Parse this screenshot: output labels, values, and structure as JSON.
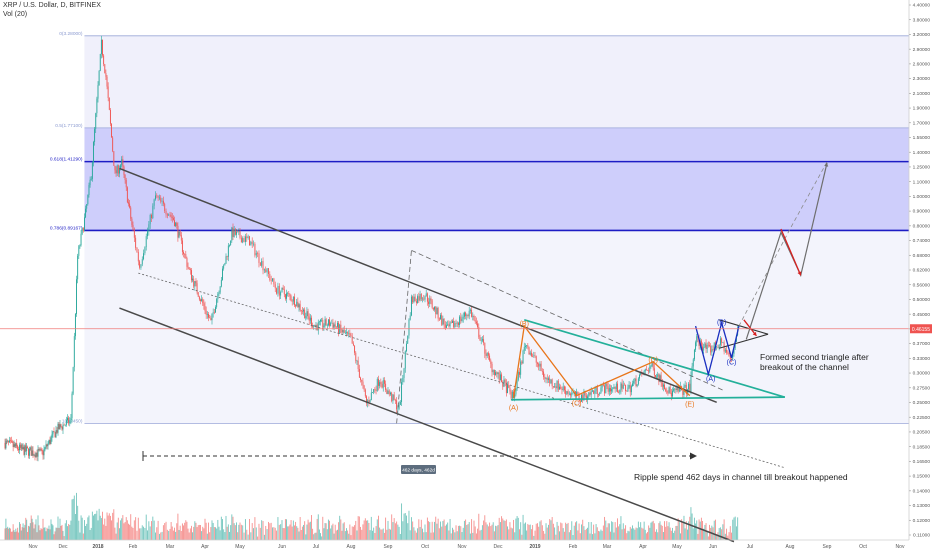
{
  "header": {
    "symbol_line": "XRP / U.S. Dollar, D, BITFINEX",
    "volume_line": "Vol (20)"
  },
  "chart_data": {
    "type": "candlestick",
    "scale": "log",
    "ylim": [
      0.11,
      5.1
    ],
    "y_ticks": [
      "4.40000",
      "3.80000",
      "3.20000",
      "2.90000",
      "2.60000",
      "2.30000",
      "2.10000",
      "1.90000",
      "1.70000",
      "1.55000",
      "1.40000",
      "1.25000",
      "1.10000",
      "1.00000",
      "0.90000",
      "0.80000",
      "0.74000",
      "0.68000",
      "0.62000",
      "0.56000",
      "0.50000",
      "0.45000",
      "0.40600",
      "0.37000",
      "0.33000",
      "0.30000",
      "0.27500",
      "0.25000",
      "0.22500",
      "0.20500",
      "0.18500",
      "0.16500",
      "0.15000",
      "0.14000",
      "0.13000",
      "0.12000",
      "0.11000"
    ],
    "x_ticks": [
      "Nov",
      "Dec",
      "2018",
      "Feb",
      "Mar",
      "Apr",
      "May",
      "Jun",
      "Jul",
      "Aug",
      "Sep",
      "Oct",
      "Nov",
      "Dec",
      "2019",
      "Feb",
      "Mar",
      "Apr",
      "May",
      "Jun",
      "Jul",
      "Aug",
      "Sep",
      "Oct",
      "Nov"
    ],
    "current_price_label": "0.46155",
    "current_price": 0.46155,
    "fib_levels": [
      {
        "label": "0(3.28000)",
        "value": 3.28
      },
      {
        "label": "0.5(1.77100)",
        "value": 1.771
      },
      {
        "label": "0.618(1.41290)",
        "value": 1.4129
      },
      {
        "label": "0.786(0.89167)",
        "value": 0.89167
      },
      {
        "label": "1(0.2450)",
        "value": 0.245
      }
    ],
    "wave_labels": [
      {
        "label": "(A)",
        "color": "#e8751a",
        "date": "2018-12-14",
        "value": 0.268
      },
      {
        "label": "(B)",
        "color": "#e8751a",
        "date": "2018-12-23",
        "value": 0.47
      },
      {
        "label": "(C)",
        "color": "#e8751a",
        "date": "2019-02-04",
        "value": 0.276
      },
      {
        "label": "(D)",
        "color": "#e8751a",
        "date": "2019-04-10",
        "value": 0.37
      },
      {
        "label": "(E)",
        "color": "#e8751a",
        "date": "2019-05-12",
        "value": 0.274
      },
      {
        "label": "(A)",
        "color": "#1a2fc0",
        "date": "2019-05-30",
        "value": 0.325
      },
      {
        "label": "(B)",
        "color": "#1a2fc0",
        "date": "2019-06-08",
        "value": 0.475
      },
      {
        "label": "(C)",
        "color": "#1a2fc0",
        "date": "2019-06-16",
        "value": 0.363
      }
    ],
    "annotations": [
      "Formed second triangle after breakout of the channel",
      "Ripple spend 462 days in channel till breakout happened"
    ],
    "range_label": "462 days, 462d"
  },
  "colors": {
    "up": "#26a69a",
    "down": "#ef5350",
    "fib_band": "#c9c9fb",
    "fib_line": "#1c1cc4",
    "channel": "#4a4a4a",
    "triangle": "#23b09a",
    "wave_orange": "#e8751a",
    "wave_blue": "#1a2fc0",
    "price_line": "#f07b78"
  }
}
